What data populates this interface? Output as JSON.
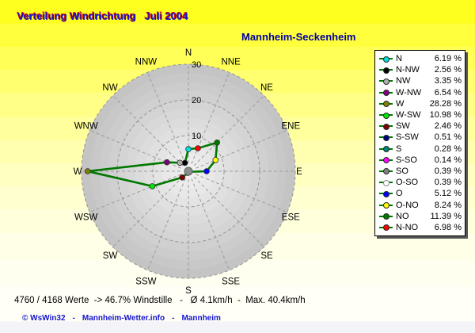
{
  "header": {
    "title": "Verteilung Windrichtung   Juli 2004",
    "station": "Mannheim-Seckenheim"
  },
  "chart_data": {
    "type": "line",
    "polar": true,
    "title": "Verteilung Windrichtung   Juli 2004",
    "subtitle": "Mannheim-Seckenheim",
    "compass_labels": [
      "N",
      "NNE",
      "NE",
      "ENE",
      "E",
      "ESE",
      "SE",
      "SSE",
      "S",
      "SSW",
      "SW",
      "WSW",
      "W",
      "WNW",
      "NW",
      "NNW"
    ],
    "radial_ticks": [
      10,
      20,
      30
    ],
    "rmax": 30,
    "unit": "%",
    "line_color": "#007800",
    "entries": [
      {
        "label": "N",
        "compass": 0,
        "value": 6.19,
        "display": "6.19 %",
        "color": "#00e0e0"
      },
      {
        "label": "N-NW",
        "compass": 15,
        "value": 2.56,
        "display": "2.56 %",
        "color": "#000000"
      },
      {
        "label": "NW",
        "compass": 14,
        "value": 3.35,
        "display": "3.35 %",
        "color": "#b0b0b0"
      },
      {
        "label": "W-NW",
        "compass": 13,
        "value": 6.54,
        "display": "6.54 %",
        "color": "#800080"
      },
      {
        "label": "W",
        "compass": 12,
        "value": 28.28,
        "display": "28.28 %",
        "color": "#808000"
      },
      {
        "label": "W-SW",
        "compass": 11,
        "value": 10.98,
        "display": "10.98 %",
        "color": "#00e800"
      },
      {
        "label": "SW",
        "compass": 10,
        "value": 2.46,
        "display": "2.46 %",
        "color": "#800000"
      },
      {
        "label": "S-SW",
        "compass": 9,
        "value": 0.51,
        "display": "0.51 %",
        "color": "#000080"
      },
      {
        "label": "S",
        "compass": 8,
        "value": 0.28,
        "display": "0.28 %",
        "color": "#008080"
      },
      {
        "label": "S-SO",
        "compass": 7,
        "value": 0.14,
        "display": "0.14 %",
        "color": "#ff00ff"
      },
      {
        "label": "SO",
        "compass": 6,
        "value": 0.39,
        "display": "0.39 %",
        "color": "#808080"
      },
      {
        "label": "O-SO",
        "compass": 5,
        "value": 0.39,
        "display": "0.39 %",
        "color": "#ffffff"
      },
      {
        "label": "O",
        "compass": 4,
        "value": 5.12,
        "display": "5.12 %",
        "color": "#0000ff"
      },
      {
        "label": "O-NO",
        "compass": 3,
        "value": 8.24,
        "display": "8.24 %",
        "color": "#ffff00"
      },
      {
        "label": "NO",
        "compass": 2,
        "value": 11.39,
        "display": "11.39 %",
        "color": "#007800"
      },
      {
        "label": "N-NO",
        "compass": 1,
        "value": 6.98,
        "display": "6.98 %",
        "color": "#ff0000"
      }
    ]
  },
  "footer": {
    "stats": "4760 / 4168 Werte  -> 46.7% Windstille   -   Ø 4.1km/h  -  Max. 40.4km/h",
    "credits": {
      "items": [
        "© WsWin32",
        "Mannheim-Wetter.info",
        "Mannheim"
      ],
      "separator": "-"
    }
  }
}
